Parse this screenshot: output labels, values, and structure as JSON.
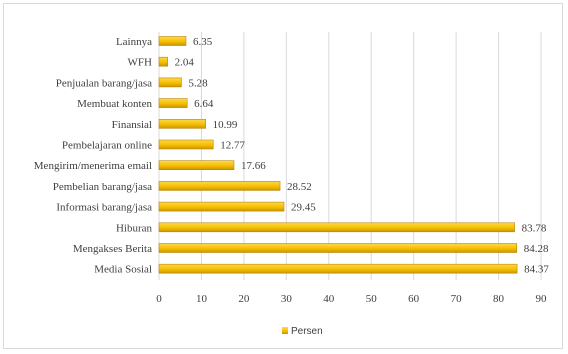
{
  "chart_data": {
    "type": "bar",
    "orientation": "horizontal",
    "categories": [
      "Lainnya",
      "WFH",
      "Penjualan barang/jasa",
      "Membuat konten",
      "Finansial",
      "Pembelajaran online",
      "Mengirim/menerima email",
      "Pembelian barang/jasa",
      "Informasi barang/jasa",
      "Hiburan",
      "Mengakses Berita",
      "Media Sosial"
    ],
    "series": [
      {
        "name": "Persen",
        "values": [
          6.35,
          2.04,
          5.28,
          6.64,
          10.99,
          12.77,
          17.66,
          28.52,
          29.45,
          83.78,
          84.28,
          84.37
        ],
        "value_labels": [
          "6.35",
          "2.04",
          "5.28",
          "6.64",
          "10.99",
          "12.77",
          "17.66",
          "28.52",
          "29.45",
          "83.78",
          "84.28",
          "84.37"
        ],
        "color": "#f5bf00"
      }
    ],
    "xticks": [
      "0",
      "10",
      "20",
      "30",
      "40",
      "50",
      "60",
      "70",
      "80",
      "90"
    ],
    "xlim": [
      0,
      90
    ],
    "grid": true,
    "legend_position": "bottom",
    "title": "",
    "xlabel": "",
    "ylabel": ""
  }
}
